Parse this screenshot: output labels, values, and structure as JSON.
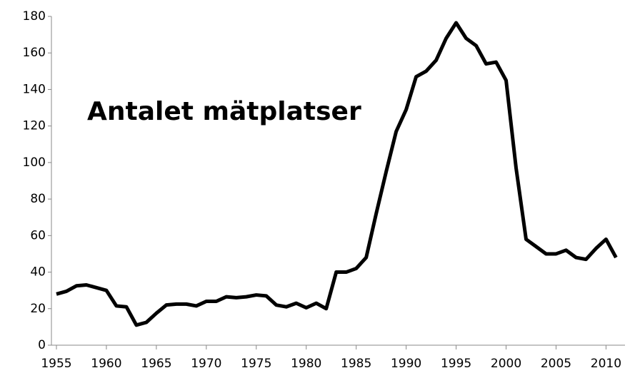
{
  "chart_data": {
    "type": "line",
    "annotation": "Antalet mätplatser",
    "x": [
      1955,
      1956,
      1957,
      1958,
      1959,
      1960,
      1961,
      1962,
      1963,
      1964,
      1965,
      1966,
      1967,
      1968,
      1969,
      1970,
      1971,
      1972,
      1973,
      1974,
      1975,
      1976,
      1977,
      1978,
      1979,
      1980,
      1981,
      1982,
      1983,
      1984,
      1985,
      1986,
      1987,
      1988,
      1989,
      1990,
      1991,
      1992,
      1993,
      1994,
      1995,
      1996,
      1997,
      1998,
      1999,
      2000,
      2001,
      2002,
      2003,
      2004,
      2005,
      2006,
      2007,
      2008,
      2009,
      2010,
      2011
    ],
    "values": [
      28,
      29.5,
      32.5,
      33,
      31.5,
      30,
      21.5,
      21,
      11,
      12.5,
      17.5,
      22,
      22.5,
      22.5,
      21.5,
      24,
      24,
      26.5,
      26,
      26.5,
      27.5,
      27,
      22,
      21,
      23,
      20.5,
      23,
      20,
      40,
      40,
      42,
      48,
      72,
      95,
      117,
      129,
      147,
      150,
      156,
      168,
      176.5,
      168,
      164,
      154,
      155,
      145,
      97,
      58,
      54,
      50,
      50,
      52,
      48,
      47,
      53,
      58,
      48
    ],
    "color": "#000000",
    "xlim": [
      1954.5,
      2011.9
    ],
    "xticks": [
      1955,
      1960,
      1965,
      1970,
      1975,
      1980,
      1985,
      1990,
      1995,
      2000,
      2005,
      2010
    ],
    "ylim": [
      0,
      180
    ],
    "yticks": [
      0,
      20,
      40,
      60,
      80,
      100,
      120,
      140,
      160,
      180
    ],
    "grid": false
  }
}
